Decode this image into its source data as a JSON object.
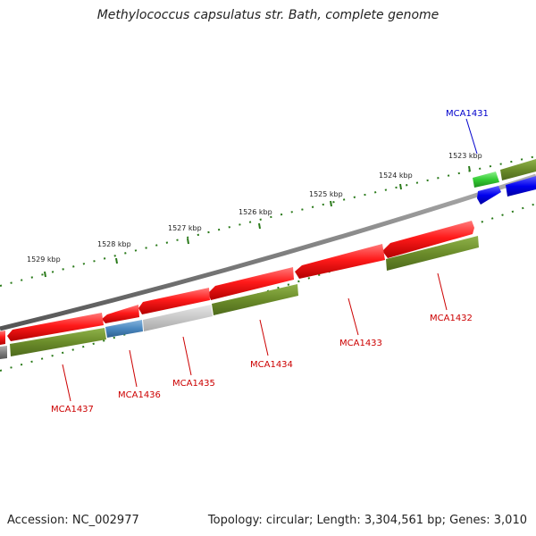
{
  "title": "Methylococcus capsulatus str. Bath, complete genome",
  "footer": {
    "accession": "Accession: NC_002977",
    "summary": "Topology: circular; Length: 3,304,561 bp; Genes: 3,010"
  },
  "colors": {
    "forward_cds": "#ee1111",
    "reverse_cds": "#6b8c2a",
    "rna": "#0000ee",
    "highlight_green": "#33cc33",
    "blue_gene": "#4a88c0",
    "pseudo_gray": "#c8c8c8",
    "backbone": "#888888",
    "tick": "#2a7a1a",
    "label_red": "#cc0000",
    "label_blue": "#0000cc"
  },
  "kbp_ticks": [
    "1523 kbp",
    "1524 kbp",
    "1525 kbp",
    "1526 kbp",
    "1527 kbp",
    "1528 kbp",
    "1529 kbp"
  ],
  "gene_labels": [
    {
      "name": "MCA1431",
      "color": "label_blue"
    },
    {
      "name": "MCA1432",
      "color": "label_red"
    },
    {
      "name": "MCA1433",
      "color": "label_red"
    },
    {
      "name": "MCA1434",
      "color": "label_red"
    },
    {
      "name": "MCA1435",
      "color": "label_red"
    },
    {
      "name": "MCA1436",
      "color": "label_red"
    },
    {
      "name": "MCA1437",
      "color": "label_red"
    }
  ]
}
